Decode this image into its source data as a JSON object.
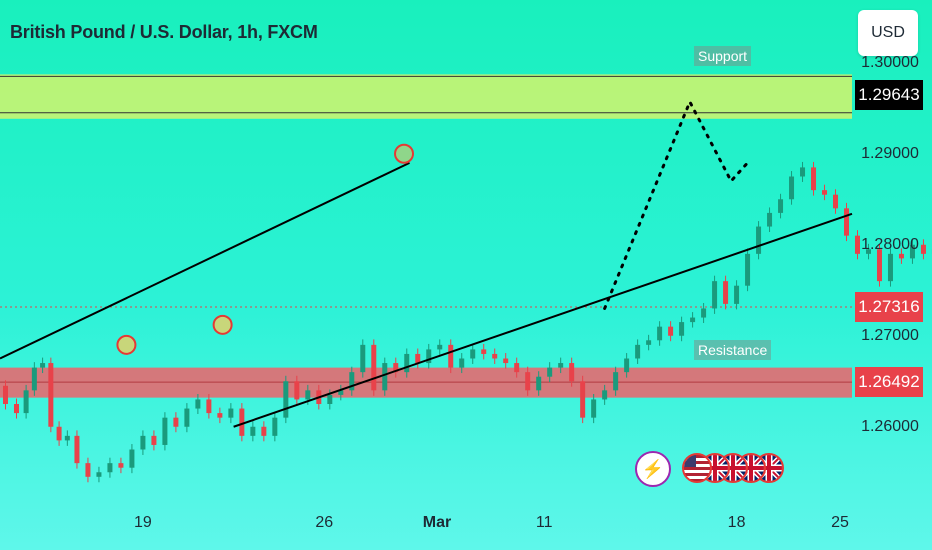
{
  "header": {
    "title": "British Pound / U.S. Dollar, 1h, FXCM"
  },
  "currency_button": {
    "label": "USD"
  },
  "zones": {
    "support": {
      "label": "Support",
      "price_label": "1.29643",
      "low": 1.2945,
      "high": 1.2985
    },
    "resistance": {
      "label": "Resistance",
      "price_label": "1.26492",
      "low": 1.2632,
      "high": 1.2665
    }
  },
  "current_price": {
    "label": "1.27316",
    "value": 1.27316
  },
  "events": {
    "lightning_icon": "lightning-icon",
    "flags": [
      "us-flag",
      "uk-flag",
      "uk-flag",
      "uk-flag",
      "uk-flag"
    ]
  },
  "colors": {
    "background_top": "#19f0bd",
    "support_zone": "#d4f56b",
    "resistance_zone": "#f0616a",
    "bull_candle": "#1a9a7c",
    "bear_candle": "#e8424a",
    "trendline": "#000000",
    "marker_circle": "#e53935"
  },
  "chart_data": {
    "type": "line",
    "title": "British Pound / U.S. Dollar, 1h, FXCM",
    "x_ticks": [
      "19",
      "26",
      "Mar",
      "11",
      "18",
      "25"
    ],
    "y_ticks": [
      "1.30000",
      "1.29000",
      "1.28000",
      "1.27000",
      "1.26000"
    ],
    "ylim": [
      1.2525,
      1.3025
    ],
    "x_domain_days": [
      -4,
      27
    ],
    "y_ticks_values": [
      1.3,
      1.29,
      1.28,
      1.27,
      1.26
    ],
    "series": [
      {
        "x": [
          -4,
          -3.6,
          -3.2,
          -2.9,
          -2.6,
          -2.3,
          -2.0,
          -1.7,
          -1.4,
          -1.0,
          -0.6,
          -0.2,
          0.2,
          0.6,
          1.0,
          1.4,
          1.8,
          2.2,
          2.6,
          3.0,
          3.4,
          3.8,
          4.2,
          4.6,
          5.0,
          5.4,
          5.8,
          6.2,
          6.6,
          7.0,
          7.4,
          7.8,
          8.2,
          8.6,
          9.0,
          9.4,
          9.8,
          10.2,
          10.6,
          11.0,
          11.4,
          11.8,
          12.2,
          12.6,
          13.0,
          13.4,
          13.8,
          14.2,
          14.6,
          15.0,
          15.4,
          15.8,
          16.2,
          16.6,
          17.0,
          17.4,
          17.8,
          18.2,
          18.6,
          19.0,
          19.4,
          19.8,
          20.2,
          20.6,
          21.0,
          21.4,
          21.8,
          22.2,
          22.6,
          23.0,
          23.4,
          23.8,
          24.2,
          24.6,
          25.0,
          25.4,
          25.8,
          26.2,
          26.6,
          27.0,
          27.4,
          27.8,
          28.2,
          28.6,
          29.0,
          29.4,
          29.8,
          30.2,
          30.6,
          31.0,
          31.4,
          31.8,
          32.2
        ],
        "y": [
          1.2645,
          1.2625,
          1.2615,
          1.264,
          1.2665,
          1.267,
          1.26,
          1.2585,
          1.259,
          1.256,
          1.2545,
          1.255,
          1.256,
          1.2555,
          1.2575,
          1.259,
          1.258,
          1.261,
          1.26,
          1.262,
          1.263,
          1.2615,
          1.261,
          1.262,
          1.259,
          1.26,
          1.259,
          1.261,
          1.265,
          1.263,
          1.264,
          1.2625,
          1.2635,
          1.264,
          1.266,
          1.269,
          1.264,
          1.267,
          1.266,
          1.268,
          1.267,
          1.2685,
          1.269,
          1.2665,
          1.2675,
          1.2685,
          1.268,
          1.2675,
          1.267,
          1.266,
          1.264,
          1.2655,
          1.2665,
          1.267,
          1.265,
          1.261,
          1.263,
          1.264,
          1.266,
          1.2675,
          1.269,
          1.2695,
          1.271,
          1.27,
          1.2715,
          1.272,
          1.273,
          1.276,
          1.2735,
          1.2755,
          1.279,
          1.282,
          1.2835,
          1.285,
          1.2875,
          1.2885,
          1.286,
          1.2855,
          1.284,
          1.281,
          1.279,
          1.2795,
          1.276,
          1.279,
          1.2785,
          1.28,
          1.279,
          1.2795,
          1.276,
          1.274,
          1.2735,
          1.2732,
          1.2728
        ]
      }
    ]
  }
}
